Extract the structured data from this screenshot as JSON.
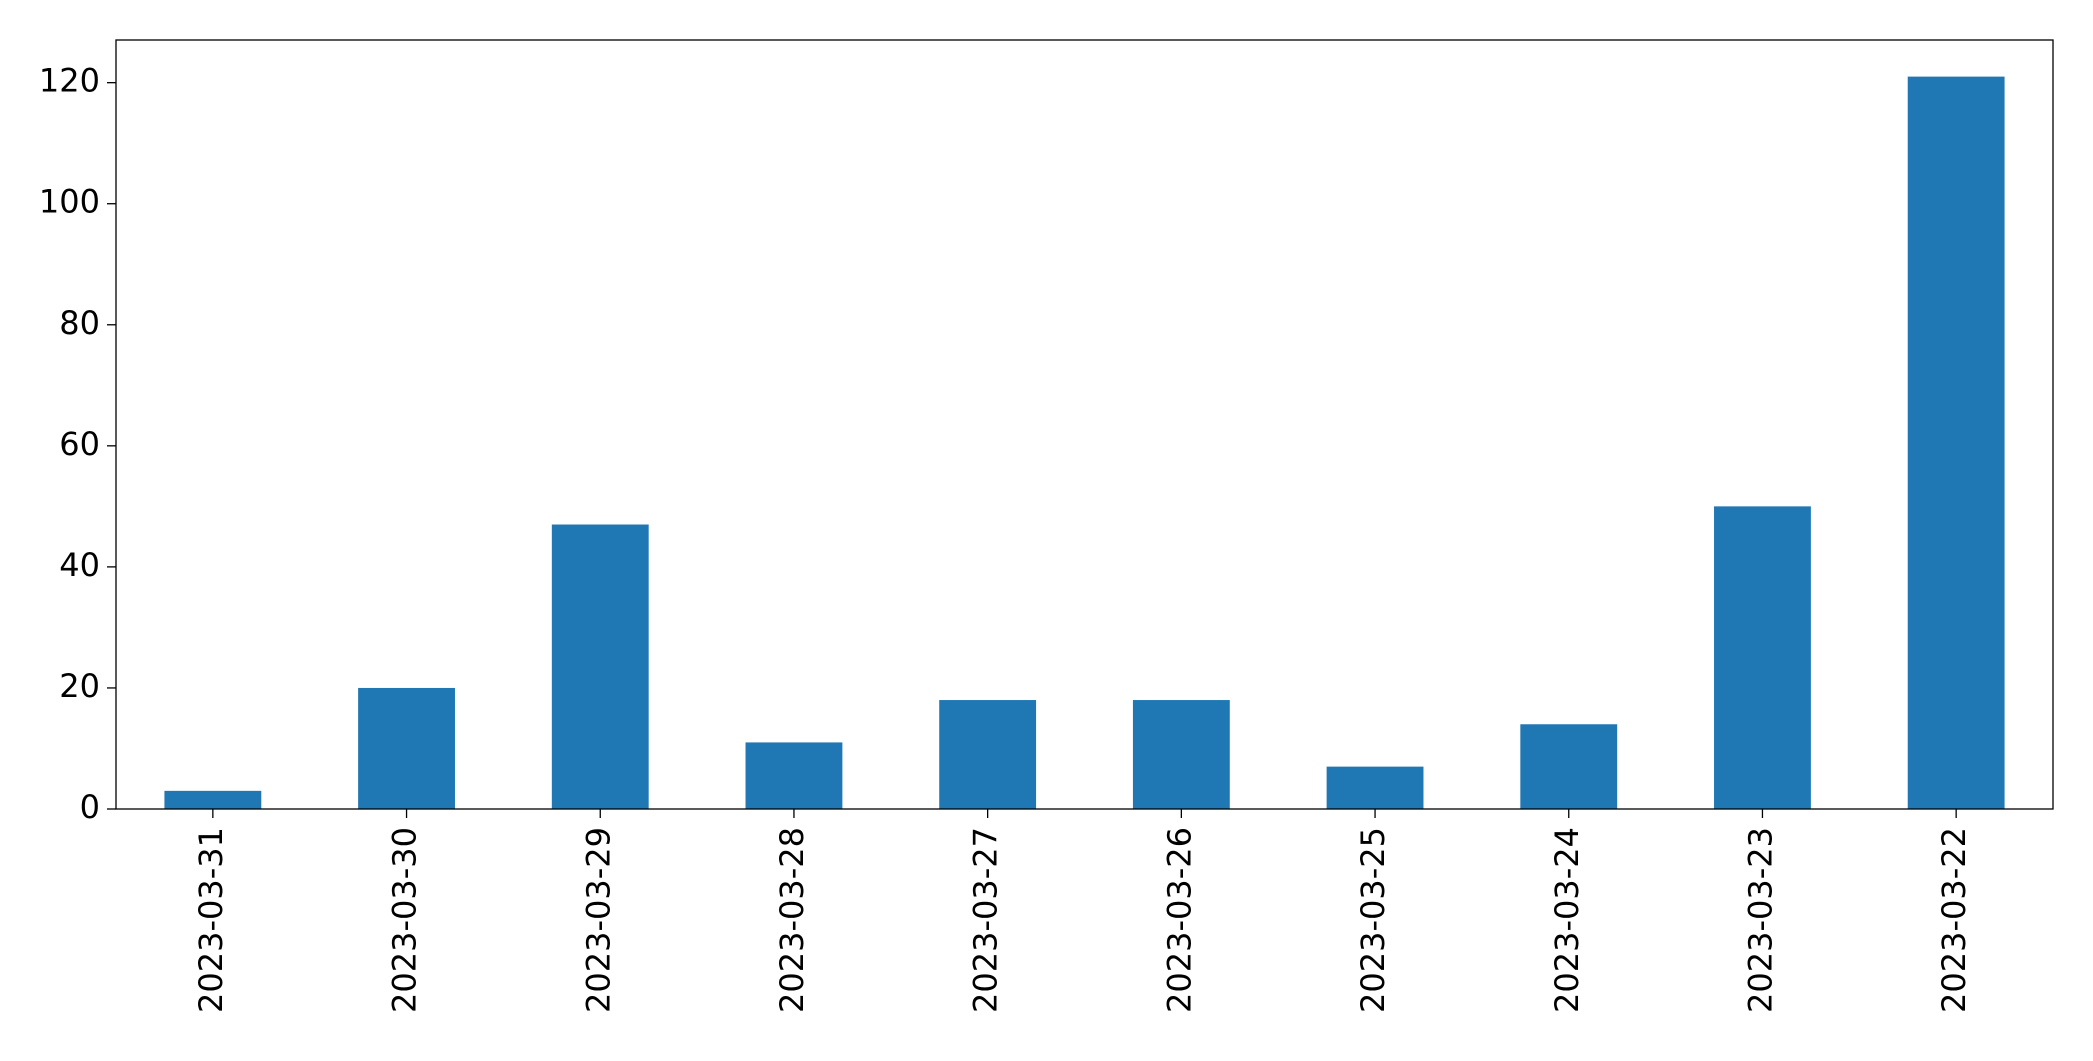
{
  "chart_data": {
    "type": "bar",
    "categories": [
      "2023-03-31",
      "2023-03-30",
      "2023-03-29",
      "2023-03-28",
      "2023-03-27",
      "2023-03-26",
      "2023-03-25",
      "2023-03-24",
      "2023-03-23",
      "2023-03-22"
    ],
    "values": [
      3,
      20,
      47,
      11,
      18,
      18,
      7,
      14,
      50,
      121
    ],
    "color": "#1f77b4",
    "ylim": [
      0,
      127.05
    ],
    "yticks": [
      0,
      20,
      40,
      60,
      80,
      100,
      120
    ],
    "grid": false
  }
}
